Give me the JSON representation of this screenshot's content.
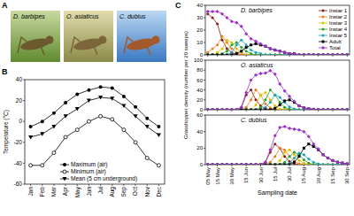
{
  "photos": {
    "label": "A",
    "captions": [
      "D. barbipes",
      "O. asiaticus",
      "C. dubius"
    ]
  },
  "chart_data": [
    {
      "type": "line",
      "panel_label": "B",
      "ylabel": "Temperature (°C)",
      "categories": [
        "Jan",
        "Feb",
        "Mar",
        "Apr",
        "May",
        "Jun",
        "Jul",
        "Aug",
        "Sep",
        "Oct",
        "Nov",
        "Dec"
      ],
      "ylim": [
        -60,
        40
      ],
      "yticks": [
        -60,
        -40,
        -20,
        0,
        20,
        40
      ],
      "grid": false,
      "legend": "bottom",
      "series": [
        {
          "name": "Maximum (air)",
          "color": "#000000",
          "marker": "circle",
          "values": [
            -5,
            0,
            8,
            18,
            26,
            30,
            33,
            32,
            24,
            14,
            3,
            -5
          ]
        },
        {
          "name": "Minimum (air)",
          "color": "#000000",
          "marker": "circle-open",
          "values": [
            -42,
            -42,
            -30,
            -15,
            -8,
            0,
            5,
            2,
            -8,
            -20,
            -35,
            -42
          ]
        },
        {
          "name": "Mean (5 cm underground)",
          "color": "#000000",
          "marker": "triangle-down",
          "values": [
            -15,
            -12,
            -5,
            5,
            12,
            20,
            23,
            22,
            15,
            5,
            -5,
            -13
          ]
        }
      ]
    },
    {
      "type": "line",
      "panel_label": "C",
      "title": "D. barbipes",
      "ylabel": "Grasshopper density (number per 20 sweeps)",
      "categories": [
        "05 May",
        null,
        "15 May",
        null,
        null,
        "30 May",
        null,
        null,
        "15 Jun",
        null,
        null,
        "30 Jun",
        null,
        null,
        "15 Jul",
        null,
        null,
        "30 Jul",
        null,
        null,
        "15 Aug",
        null,
        null,
        "30 Aug",
        null,
        null,
        "15 Sep",
        null,
        null,
        "30 Sep"
      ],
      "ylim": [
        0,
        40
      ],
      "yticks": [
        0,
        10,
        20,
        30,
        40
      ],
      "grid": false,
      "legend": "right",
      "tick_labels": "y",
      "series": [
        {
          "name": "Instar 1",
          "color": "#8b1a1a",
          "marker": "circle",
          "values": [
            33,
            30,
            25,
            12,
            5,
            2,
            0,
            0,
            0,
            0,
            0,
            0,
            0,
            0,
            0,
            0,
            0,
            0,
            0,
            0,
            0,
            0,
            0,
            0,
            0,
            0,
            0,
            0,
            0,
            0
          ]
        },
        {
          "name": "Instar 2",
          "color": "#e8801e",
          "marker": "circle",
          "values": [
            2,
            5,
            8,
            15,
            10,
            5,
            2,
            0,
            0,
            0,
            0,
            0,
            0,
            0,
            0,
            0,
            0,
            0,
            0,
            0,
            0,
            0,
            0,
            0,
            0,
            0,
            0,
            0,
            0,
            0
          ]
        },
        {
          "name": "Instar 3",
          "color": "#e0c000",
          "marker": "circle",
          "values": [
            0,
            0,
            2,
            5,
            12,
            10,
            5,
            2,
            0,
            0,
            0,
            0,
            0,
            0,
            0,
            0,
            0,
            0,
            0,
            0,
            0,
            0,
            0,
            0,
            0,
            0,
            0,
            0,
            0,
            0
          ]
        },
        {
          "name": "Instar 4",
          "color": "#2ca02c",
          "marker": "circle",
          "values": [
            0,
            0,
            0,
            1,
            3,
            8,
            10,
            6,
            3,
            1,
            0,
            0,
            0,
            0,
            0,
            0,
            0,
            0,
            0,
            0,
            0,
            0,
            0,
            0,
            0,
            0,
            0,
            0,
            0,
            0
          ]
        },
        {
          "name": "Instar 5",
          "color": "#17a2b8",
          "marker": "circle",
          "values": [
            0,
            0,
            0,
            0,
            0,
            2,
            8,
            12,
            8,
            4,
            2,
            1,
            0,
            0,
            0,
            0,
            0,
            0,
            0,
            0,
            0,
            0,
            0,
            0,
            0,
            0,
            0,
            0,
            0,
            0
          ]
        },
        {
          "name": "Adult",
          "color": "#000000",
          "marker": "square",
          "values": [
            0,
            0,
            0,
            0,
            0,
            0,
            1,
            3,
            6,
            8,
            9,
            8,
            7,
            5,
            4,
            3,
            2,
            1,
            1,
            0,
            0,
            0,
            0,
            0,
            0,
            0,
            0,
            0,
            0,
            0
          ]
        },
        {
          "name": "Total",
          "color": "#9b30c8",
          "marker": "diamond",
          "values": [
            35,
            35,
            35,
            33,
            30,
            27,
            26,
            23,
            17,
            13,
            11,
            9,
            7,
            5,
            4,
            3,
            2,
            1,
            1,
            0,
            0,
            0,
            0,
            0,
            0,
            0,
            0,
            0,
            0,
            0
          ]
        }
      ]
    },
    {
      "type": "line",
      "title": "O. asiaticus",
      "categories": [
        "05 May",
        null,
        "15 May",
        null,
        null,
        "30 May",
        null,
        null,
        "15 Jun",
        null,
        null,
        "30 Jun",
        null,
        null,
        "15 Jul",
        null,
        null,
        "30 Jul",
        null,
        null,
        "15 Aug",
        null,
        null,
        "30 Aug",
        null,
        null,
        "15 Sep",
        null,
        null,
        "30 Sep"
      ],
      "ylim": [
        0,
        100
      ],
      "yticks": [
        0,
        20,
        40,
        60,
        80,
        100
      ],
      "grid": false,
      "tick_labels": "y",
      "series": [
        {
          "name": "Instar 1",
          "color": "#8b1a1a",
          "marker": "circle",
          "values": [
            0,
            0,
            0,
            0,
            0,
            0,
            0,
            5,
            30,
            40,
            20,
            8,
            2,
            0,
            0,
            0,
            0,
            0,
            0,
            0,
            0,
            0,
            0,
            0,
            0,
            0,
            0,
            0,
            0,
            0
          ]
        },
        {
          "name": "Instar 2",
          "color": "#e8801e",
          "marker": "circle",
          "values": [
            0,
            0,
            0,
            0,
            0,
            0,
            0,
            0,
            5,
            20,
            40,
            30,
            12,
            4,
            1,
            0,
            0,
            0,
            0,
            0,
            0,
            0,
            0,
            0,
            0,
            0,
            0,
            0,
            0,
            0
          ]
        },
        {
          "name": "Instar 3",
          "color": "#e0c000",
          "marker": "circle",
          "values": [
            0,
            0,
            0,
            0,
            0,
            0,
            0,
            0,
            0,
            0,
            10,
            30,
            35,
            20,
            8,
            2,
            0,
            0,
            0,
            0,
            0,
            0,
            0,
            0,
            0,
            0,
            0,
            0,
            0,
            0
          ]
        },
        {
          "name": "Instar 4",
          "color": "#2ca02c",
          "marker": "circle",
          "values": [
            0,
            0,
            0,
            0,
            0,
            0,
            0,
            0,
            0,
            0,
            0,
            5,
            20,
            40,
            30,
            15,
            5,
            1,
            0,
            0,
            0,
            0,
            0,
            0,
            0,
            0,
            0,
            0,
            0,
            0
          ]
        },
        {
          "name": "Instar 5",
          "color": "#17a2b8",
          "marker": "circle",
          "values": [
            0,
            0,
            0,
            0,
            0,
            0,
            0,
            0,
            0,
            0,
            0,
            0,
            5,
            15,
            30,
            25,
            15,
            6,
            2,
            0,
            0,
            0,
            0,
            0,
            0,
            0,
            0,
            0,
            0,
            0
          ]
        },
        {
          "name": "Adult",
          "color": "#000000",
          "marker": "square",
          "values": [
            0,
            0,
            0,
            0,
            0,
            0,
            0,
            0,
            0,
            0,
            0,
            0,
            0,
            0,
            3,
            10,
            18,
            20,
            15,
            8,
            4,
            2,
            1,
            0,
            0,
            0,
            0,
            0,
            0,
            0
          ]
        },
        {
          "name": "Total",
          "color": "#9b30c8",
          "marker": "diamond",
          "values": [
            0,
            0,
            0,
            0,
            0,
            0,
            0,
            5,
            35,
            60,
            70,
            73,
            74,
            79,
            72,
            52,
            38,
            27,
            17,
            8,
            4,
            2,
            1,
            0,
            0,
            0,
            0,
            0,
            0,
            0
          ]
        }
      ]
    },
    {
      "type": "line",
      "title": "C. dubius",
      "xlabel": "Sampling date",
      "categories": [
        "05 May",
        null,
        "15 May",
        null,
        null,
        "30 May",
        null,
        null,
        "15 Jun",
        null,
        null,
        "30 Jun",
        null,
        null,
        "15 Jul",
        null,
        null,
        "30 Jul",
        null,
        null,
        "15 Aug",
        null,
        null,
        "30 Aug",
        null,
        null,
        "15 Sep",
        null,
        null,
        "30 Sep"
      ],
      "ylim": [
        0,
        60
      ],
      "yticks": [
        0,
        20,
        40,
        60
      ],
      "grid": false,
      "series": [
        {
          "name": "Instar 1",
          "color": "#8b1a1a",
          "marker": "circle",
          "values": [
            0,
            0,
            0,
            0,
            0,
            0,
            0,
            0,
            0,
            0,
            0,
            0,
            3,
            15,
            25,
            20,
            10,
            4,
            1,
            0,
            0,
            0,
            0,
            0,
            0,
            0,
            0,
            0,
            0,
            0
          ]
        },
        {
          "name": "Instar 2",
          "color": "#e8801e",
          "marker": "circle",
          "values": [
            0,
            0,
            0,
            0,
            0,
            0,
            0,
            0,
            0,
            0,
            0,
            0,
            0,
            3,
            10,
            20,
            18,
            10,
            4,
            1,
            0,
            0,
            0,
            0,
            0,
            0,
            0,
            0,
            0,
            0
          ]
        },
        {
          "name": "Instar 3",
          "color": "#e0c000",
          "marker": "circle",
          "values": [
            0,
            0,
            0,
            0,
            0,
            0,
            0,
            0,
            0,
            0,
            0,
            0,
            0,
            0,
            0,
            5,
            15,
            18,
            12,
            5,
            2,
            0,
            0,
            0,
            0,
            0,
            0,
            0,
            0,
            0
          ]
        },
        {
          "name": "Instar 4",
          "color": "#2ca02c",
          "marker": "circle",
          "values": [
            0,
            0,
            0,
            0,
            0,
            0,
            0,
            0,
            0,
            0,
            0,
            0,
            0,
            0,
            0,
            0,
            3,
            10,
            15,
            12,
            6,
            2,
            0,
            0,
            0,
            0,
            0,
            0,
            0,
            0
          ]
        },
        {
          "name": "Instar 5",
          "color": "#17a2b8",
          "marker": "circle",
          "values": [
            0,
            0,
            0,
            0,
            0,
            0,
            0,
            0,
            0,
            0,
            0,
            0,
            0,
            0,
            0,
            0,
            0,
            2,
            8,
            14,
            12,
            7,
            3,
            1,
            0,
            0,
            0,
            0,
            0,
            0
          ]
        },
        {
          "name": "Adult",
          "color": "#000000",
          "marker": "square",
          "values": [
            0,
            0,
            0,
            0,
            0,
            0,
            0,
            0,
            0,
            0,
            0,
            0,
            0,
            0,
            0,
            0,
            0,
            0,
            3,
            10,
            20,
            25,
            22,
            18,
            12,
            8,
            5,
            3,
            2,
            1
          ]
        },
        {
          "name": "Total",
          "color": "#9b30c8",
          "marker": "diamond",
          "values": [
            0,
            0,
            0,
            0,
            0,
            0,
            0,
            0,
            0,
            0,
            0,
            0,
            3,
            18,
            35,
            45,
            46,
            44,
            43,
            42,
            40,
            34,
            25,
            19,
            12,
            8,
            5,
            3,
            2,
            1
          ]
        }
      ]
    }
  ]
}
